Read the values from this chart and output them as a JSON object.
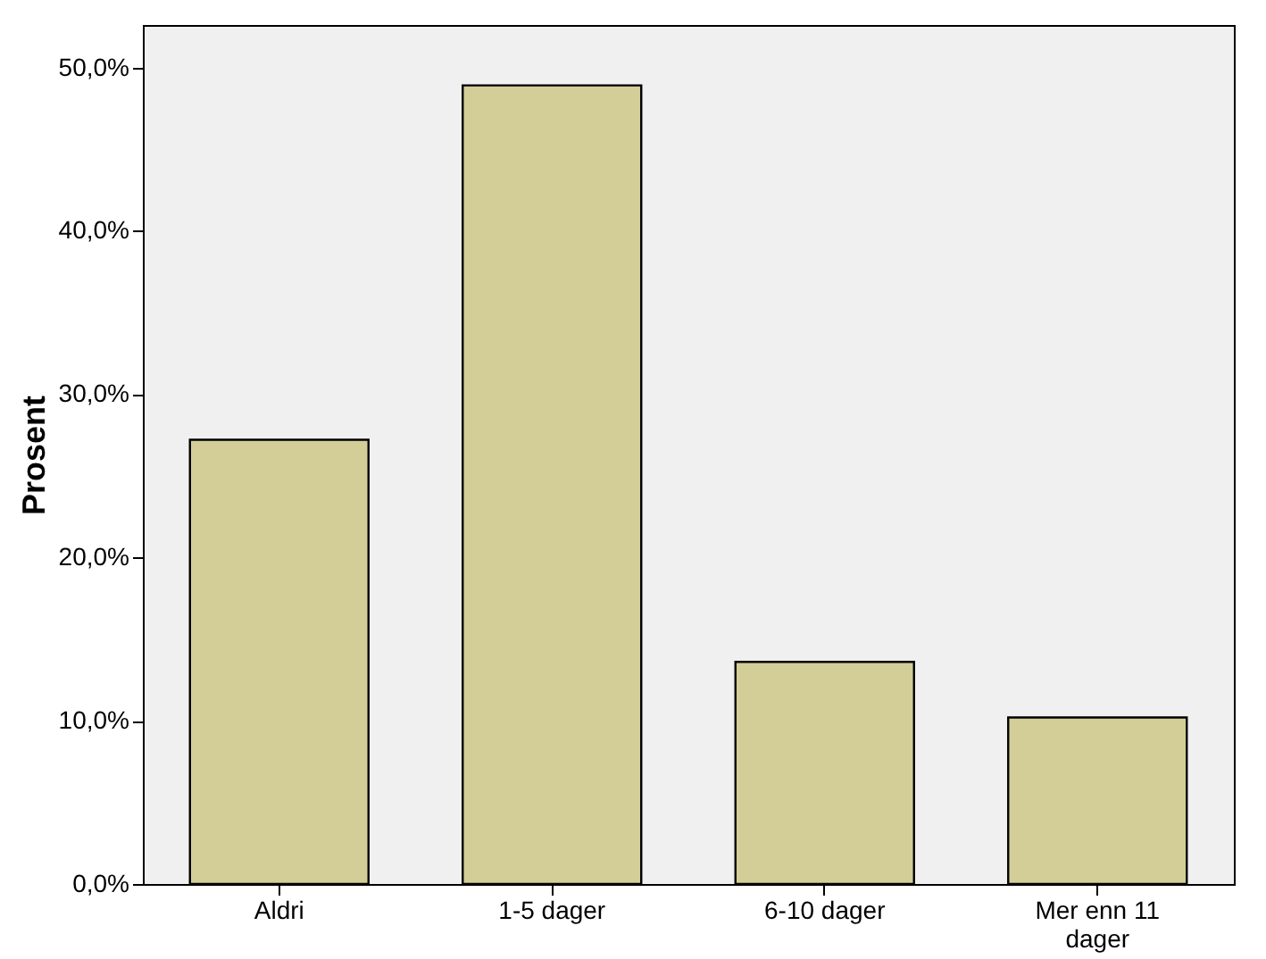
{
  "chart_data": {
    "type": "bar",
    "ylabel": "Prosent",
    "categories": [
      "Aldri",
      "1-5 dager",
      "6-10 dager",
      "Mer enn 11 dager"
    ],
    "values": [
      27.2,
      48.9,
      13.6,
      10.2
    ],
    "color": "#d3ce97",
    "ylim": [
      0,
      52.6
    ],
    "yticks": [
      {
        "value": 0,
        "label": "0,0%"
      },
      {
        "value": 10,
        "label": "10,0%"
      },
      {
        "value": 20,
        "label": "20,0%"
      },
      {
        "value": 30,
        "label": "30,0%"
      },
      {
        "value": 40,
        "label": "40,0%"
      },
      {
        "value": 50,
        "label": "50,0%"
      }
    ],
    "grid": false
  }
}
